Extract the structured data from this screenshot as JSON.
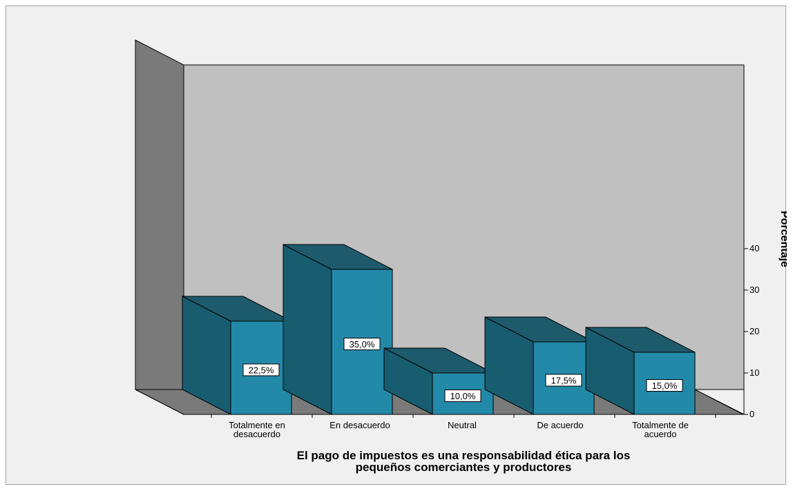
{
  "chart_data": {
    "type": "bar",
    "style": "3d",
    "categories": [
      "Totalmente en desacuerdo",
      "En desacuerdo",
      "Neutral",
      "De acuerdo",
      "Totalmente de acuerdo"
    ],
    "category_lines": [
      [
        "Totalmente en",
        "desacuerdo"
      ],
      [
        "En desacuerdo"
      ],
      [
        "Neutral"
      ],
      [
        "De acuerdo"
      ],
      [
        "Totalmente de",
        "acuerdo"
      ]
    ],
    "values": [
      22.5,
      35.0,
      10.0,
      17.5,
      15.0
    ],
    "data_labels": [
      "22,5%",
      "35,0%",
      "10,0%",
      "17,5%",
      "15,0%"
    ],
    "title_lines": [
      "El pago de impuestos es una responsabilidad ética para los",
      "pequeños comerciantes y productores"
    ],
    "ylabel": "Porcentaje",
    "ylim": [
      0,
      40
    ],
    "yticks": [
      0,
      10,
      20,
      30,
      40
    ],
    "y_axis_side": "right",
    "colors": {
      "bar_front": "#2389a8",
      "bar_side": "#185c70",
      "bar_top": "#1d5a6c",
      "back_wall": "#c0c0c0",
      "side_wall": "#7a7a7a",
      "floor": "#7a7a7a",
      "plot_bg": "#f0f0f0"
    }
  }
}
